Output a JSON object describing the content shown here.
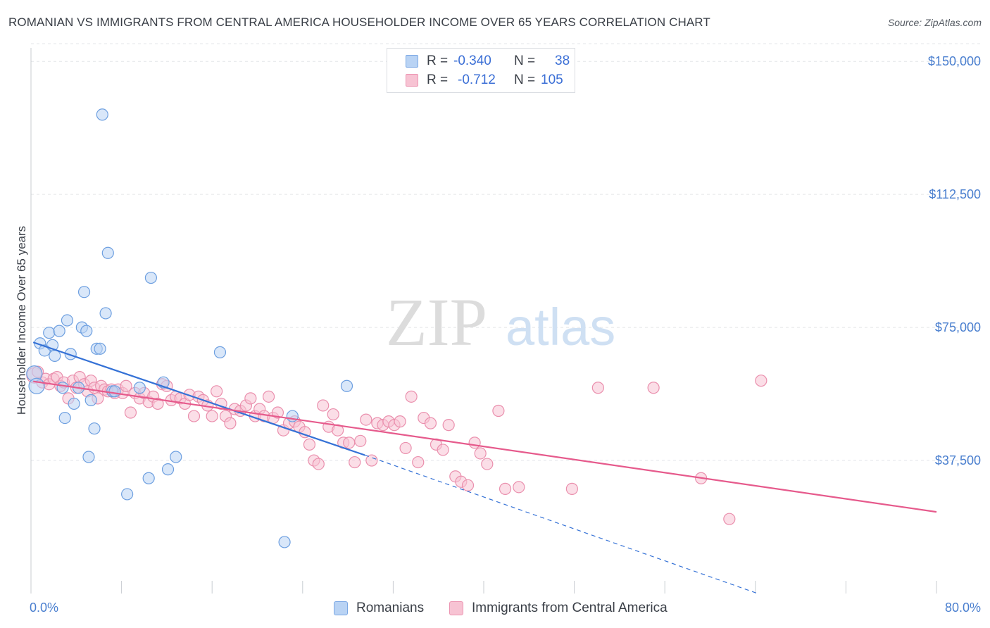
{
  "header": {
    "title": "ROMANIAN VS IMMIGRANTS FROM CENTRAL AMERICA HOUSEHOLDER INCOME OVER 65 YEARS CORRELATION CHART",
    "source": "Source: ZipAtlas.com"
  },
  "watermark": {
    "zip": "ZIP",
    "atlas": "atlas"
  },
  "legend": {
    "r_label": "R =",
    "n_label": "N =",
    "items": [
      {
        "name": "Romanians",
        "r": "-0.340",
        "n": "38",
        "fill": "#b9d3f4",
        "stroke": "#7aa7e4"
      },
      {
        "name": "Immigrants from Central America",
        "r": "-0.712",
        "n": "105",
        "fill": "#f7c3d3",
        "stroke": "#ec94b1"
      }
    ]
  },
  "chart_data": {
    "type": "scatter",
    "title": "ROMANIAN VS IMMIGRANTS FROM CENTRAL AMERICA HOUSEHOLDER INCOME OVER 65 YEARS CORRELATION CHART",
    "xlabel": "",
    "ylabel": "Householder Income Over 65 years",
    "xlim": [
      0,
      80
    ],
    "ylim": [
      0,
      155000
    ],
    "x_tick_labels": [
      "0.0%",
      "80.0%"
    ],
    "y_ticks": [
      37500,
      75000,
      112500,
      150000
    ],
    "y_tick_labels": [
      "$37,500",
      "$75,000",
      "$112,500",
      "$150,000"
    ],
    "grid": true,
    "legend_position": "top-center",
    "series": [
      {
        "name": "Romanians",
        "color": "#6d9fe0",
        "fill": "#b9d3f4",
        "trend_color": "#3471d6",
        "trend": {
          "x0": 0.2,
          "y0": 70800,
          "x1": 29.5,
          "y1": 39000,
          "dash_to_x": 64.2,
          "dash_to_y": 0
        },
        "points": [
          [
            0.3,
            62000
          ],
          [
            0.5,
            58500
          ],
          [
            0.8,
            70500
          ],
          [
            1.2,
            68500
          ],
          [
            1.6,
            73500
          ],
          [
            1.9,
            70000
          ],
          [
            2.1,
            67000
          ],
          [
            2.5,
            74000
          ],
          [
            2.8,
            58000
          ],
          [
            3.0,
            49500
          ],
          [
            3.2,
            77000
          ],
          [
            3.5,
            67500
          ],
          [
            3.8,
            53500
          ],
          [
            4.2,
            58000
          ],
          [
            4.5,
            75000
          ],
          [
            4.7,
            85000
          ],
          [
            4.9,
            74000
          ],
          [
            5.1,
            38500
          ],
          [
            5.3,
            54500
          ],
          [
            5.6,
            46500
          ],
          [
            5.8,
            69000
          ],
          [
            6.1,
            69000
          ],
          [
            6.3,
            135000
          ],
          [
            6.6,
            79000
          ],
          [
            6.8,
            96000
          ],
          [
            7.2,
            57000
          ],
          [
            7.4,
            57000
          ],
          [
            8.5,
            28000
          ],
          [
            9.6,
            58000
          ],
          [
            10.4,
            32500
          ],
          [
            10.6,
            89000
          ],
          [
            11.7,
            59500
          ],
          [
            12.1,
            35000
          ],
          [
            12.8,
            38500
          ],
          [
            16.7,
            68000
          ],
          [
            23.1,
            50000
          ],
          [
            22.4,
            14500
          ],
          [
            27.9,
            58500
          ]
        ]
      },
      {
        "name": "Immigrants from Central America",
        "color": "#ea8fad",
        "fill": "#f7c3d3",
        "trend_color": "#e65a8c",
        "trend": {
          "x0": 0.2,
          "y0": 59800,
          "x1": 80,
          "y1": 23000
        },
        "points": [
          [
            0.3,
            61500
          ],
          [
            0.6,
            62500
          ],
          [
            1.0,
            59500
          ],
          [
            1.3,
            60500
          ],
          [
            1.6,
            59000
          ],
          [
            2.0,
            60500
          ],
          [
            2.3,
            61000
          ],
          [
            2.6,
            58500
          ],
          [
            2.9,
            59500
          ],
          [
            3.3,
            55000
          ],
          [
            3.7,
            60000
          ],
          [
            4.0,
            58000
          ],
          [
            4.3,
            61000
          ],
          [
            4.7,
            59000
          ],
          [
            5.0,
            57000
          ],
          [
            5.3,
            60000
          ],
          [
            5.6,
            58000
          ],
          [
            5.9,
            55000
          ],
          [
            6.2,
            58500
          ],
          [
            6.5,
            57500
          ],
          [
            6.8,
            57000
          ],
          [
            7.1,
            57500
          ],
          [
            7.4,
            56500
          ],
          [
            7.7,
            57500
          ],
          [
            8.1,
            56500
          ],
          [
            8.4,
            58500
          ],
          [
            8.8,
            51000
          ],
          [
            9.2,
            56500
          ],
          [
            9.6,
            55000
          ],
          [
            10.0,
            56500
          ],
          [
            10.4,
            54000
          ],
          [
            10.8,
            55500
          ],
          [
            11.2,
            53500
          ],
          [
            11.6,
            59000
          ],
          [
            12.0,
            58500
          ],
          [
            12.4,
            54500
          ],
          [
            12.8,
            55500
          ],
          [
            13.2,
            55000
          ],
          [
            13.6,
            53500
          ],
          [
            14.0,
            56000
          ],
          [
            14.4,
            50000
          ],
          [
            14.8,
            55500
          ],
          [
            15.2,
            54500
          ],
          [
            15.6,
            53000
          ],
          [
            16.0,
            50000
          ],
          [
            16.4,
            57000
          ],
          [
            16.8,
            53500
          ],
          [
            17.2,
            50000
          ],
          [
            17.6,
            48000
          ],
          [
            18.0,
            52000
          ],
          [
            18.5,
            51500
          ],
          [
            19.0,
            53000
          ],
          [
            19.4,
            55000
          ],
          [
            19.8,
            50000
          ],
          [
            20.2,
            52000
          ],
          [
            20.6,
            50000
          ],
          [
            21.0,
            55500
          ],
          [
            21.4,
            49500
          ],
          [
            21.8,
            51000
          ],
          [
            22.3,
            46000
          ],
          [
            22.8,
            48000
          ],
          [
            23.3,
            48500
          ],
          [
            23.7,
            47000
          ],
          [
            24.2,
            45500
          ],
          [
            24.6,
            42000
          ],
          [
            25.0,
            37500
          ],
          [
            25.4,
            36500
          ],
          [
            25.8,
            53000
          ],
          [
            26.3,
            47000
          ],
          [
            26.7,
            50500
          ],
          [
            27.1,
            46000
          ],
          [
            27.6,
            42500
          ],
          [
            28.1,
            42500
          ],
          [
            28.6,
            37000
          ],
          [
            29.1,
            43000
          ],
          [
            29.6,
            49000
          ],
          [
            30.1,
            37500
          ],
          [
            30.6,
            48000
          ],
          [
            31.1,
            47500
          ],
          [
            31.6,
            48500
          ],
          [
            32.1,
            47500
          ],
          [
            32.6,
            48500
          ],
          [
            33.1,
            41000
          ],
          [
            33.6,
            55500
          ],
          [
            34.2,
            37000
          ],
          [
            34.7,
            49500
          ],
          [
            35.3,
            48000
          ],
          [
            35.8,
            42000
          ],
          [
            36.4,
            40500
          ],
          [
            36.9,
            47500
          ],
          [
            37.5,
            33000
          ],
          [
            38.0,
            31500
          ],
          [
            38.6,
            30500
          ],
          [
            39.2,
            42500
          ],
          [
            39.7,
            39500
          ],
          [
            40.3,
            36500
          ],
          [
            41.3,
            51500
          ],
          [
            41.9,
            29500
          ],
          [
            43.1,
            30000
          ],
          [
            47.8,
            29500
          ],
          [
            50.1,
            58000
          ],
          [
            55.0,
            58000
          ],
          [
            64.5,
            60000
          ],
          [
            59.2,
            32500
          ],
          [
            61.7,
            21000
          ]
        ]
      }
    ]
  }
}
